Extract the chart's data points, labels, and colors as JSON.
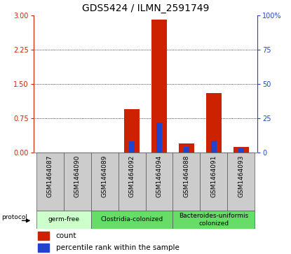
{
  "title": "GDS5424 / ILMN_2591749",
  "samples": [
    "GSM1464087",
    "GSM1464090",
    "GSM1464089",
    "GSM1464092",
    "GSM1464094",
    "GSM1464088",
    "GSM1464091",
    "GSM1464093"
  ],
  "count_values": [
    0.0,
    0.0,
    0.0,
    0.95,
    2.9,
    0.2,
    1.3,
    0.12
  ],
  "percentile_values": [
    0.0,
    0.0,
    0.0,
    8.0,
    22.0,
    4.0,
    8.5,
    3.0
  ],
  "left_ylim": [
    0,
    3
  ],
  "left_yticks": [
    0,
    0.75,
    1.5,
    2.25,
    3
  ],
  "right_ylim": [
    0,
    100
  ],
  "right_yticks": [
    0,
    25,
    50,
    75,
    100
  ],
  "right_yticklabels": [
    "0",
    "25",
    "50",
    "75",
    "100%"
  ],
  "bar_color_red": "#cc2200",
  "bar_color_blue": "#2244cc",
  "bar_width": 0.55,
  "group_data": [
    {
      "label": "germ-free",
      "start": 0,
      "end": 1,
      "color": "#ccffcc"
    },
    {
      "label": "Clostridia-colonized",
      "start": 2,
      "end": 4,
      "color": "#66dd66"
    },
    {
      "label": "Bacteroides-uniformis\ncolonized",
      "start": 5,
      "end": 7,
      "color": "#66dd66"
    }
  ],
  "protocol_label": "protocol",
  "legend_count_label": "count",
  "legend_pct_label": "percentile rank within the sample",
  "bg_color_plot": "#ffffff",
  "bg_color_sample_labels": "#cccccc",
  "tick_color_left": "#cc2200",
  "tick_color_right": "#2244cc",
  "title_fontsize": 10,
  "tick_fontsize": 7,
  "sample_fontsize": 6.5
}
